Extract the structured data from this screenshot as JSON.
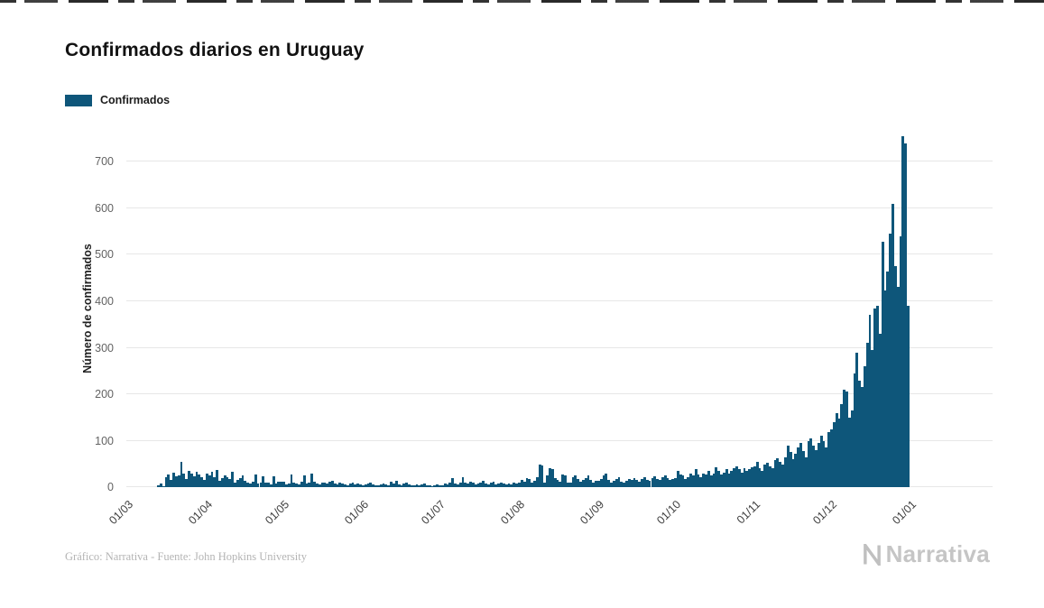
{
  "page": {
    "title": "Confirmados diarios en Uruguay",
    "footer_credit": "Gráfico: Narrativa - Fuente: John Hopkins University",
    "brand": "Narrativa"
  },
  "legend": {
    "label": "Confirmados",
    "color": "#0e567a"
  },
  "colors": {
    "bar": "#0e567a",
    "grid": "#e7e7e7",
    "brand_gray": "#c5c5c5"
  },
  "chart_data": {
    "type": "bar",
    "title": "Confirmados diarios en Uruguay",
    "series_name": "Confirmados",
    "xlabel": "",
    "ylabel": "Número de confirmados",
    "bar_color": "#0e567a",
    "grid": true,
    "legend_position": "top-left",
    "ylim": [
      0,
      765
    ],
    "y_ticks": [
      0,
      100,
      200,
      300,
      400,
      500,
      600,
      700
    ],
    "x_tick_labels": [
      "01/03",
      "01/04",
      "01/05",
      "01/06",
      "01/07",
      "01/08",
      "01/09",
      "01/10",
      "01/11",
      "01/12",
      "01/01"
    ],
    "x_tick_day_index": [
      0,
      31,
      61,
      92,
      122,
      153,
      184,
      214,
      245,
      275,
      306
    ],
    "x_start_label": "01/03",
    "frequency": "daily",
    "values": [
      0,
      0,
      0,
      0,
      0,
      0,
      0,
      0,
      0,
      0,
      0,
      0,
      4,
      8,
      2,
      21,
      27,
      16,
      31,
      24,
      25,
      55,
      30,
      17,
      35,
      29,
      24,
      34,
      27,
      21,
      16,
      30,
      25,
      33,
      21,
      36,
      14,
      19,
      26,
      21,
      18,
      33,
      10,
      15,
      20,
      25,
      13,
      10,
      8,
      12,
      28,
      8,
      10,
      24,
      10,
      9,
      6,
      23,
      8,
      12,
      11,
      12,
      6,
      8,
      27,
      10,
      8,
      6,
      11,
      25,
      8,
      10,
      30,
      12,
      8,
      6,
      9,
      10,
      8,
      12,
      14,
      8,
      6,
      10,
      8,
      6,
      4,
      8,
      10,
      6,
      8,
      5,
      4,
      6,
      8,
      10,
      6,
      4,
      3,
      5,
      8,
      6,
      4,
      12,
      8,
      14,
      6,
      4,
      8,
      10,
      6,
      4,
      3,
      5,
      4,
      6,
      8,
      4,
      3,
      2,
      4,
      6,
      3,
      4,
      8,
      6,
      10,
      19,
      8,
      6,
      9,
      22,
      10,
      8,
      12,
      9,
      6,
      8,
      10,
      14,
      8,
      6,
      9,
      11,
      6,
      8,
      10,
      7,
      5,
      8,
      6,
      9,
      8,
      10,
      15,
      12,
      20,
      18,
      9,
      14,
      21,
      48,
      47,
      10,
      25,
      40,
      38,
      20,
      15,
      12,
      28,
      25,
      10,
      9,
      22,
      25,
      18,
      12,
      15,
      20,
      25,
      15,
      10,
      14,
      13,
      18,
      25,
      30,
      15,
      10,
      14,
      18,
      22,
      12,
      9,
      14,
      18,
      16,
      20,
      15,
      12,
      18,
      22,
      16,
      14,
      20,
      24,
      18,
      15,
      22,
      25,
      20,
      16,
      18,
      20,
      35,
      28,
      25,
      18,
      22,
      30,
      25,
      38,
      28,
      22,
      30,
      28,
      35,
      25,
      30,
      42,
      35,
      28,
      32,
      38,
      30,
      35,
      40,
      45,
      38,
      32,
      40,
      35,
      38,
      42,
      45,
      55,
      40,
      35,
      48,
      52,
      45,
      40,
      58,
      62,
      55,
      48,
      65,
      90,
      75,
      60,
      72,
      85,
      95,
      78,
      65,
      100,
      105,
      90,
      80,
      95,
      110,
      100,
      85,
      118,
      125,
      140,
      160,
      148,
      178,
      210,
      205,
      150,
      165,
      245,
      290,
      230,
      215,
      260,
      310,
      370,
      296,
      385,
      390,
      330,
      529,
      424,
      465,
      545,
      610,
      475,
      432,
      540,
      755,
      740,
      391
    ]
  }
}
